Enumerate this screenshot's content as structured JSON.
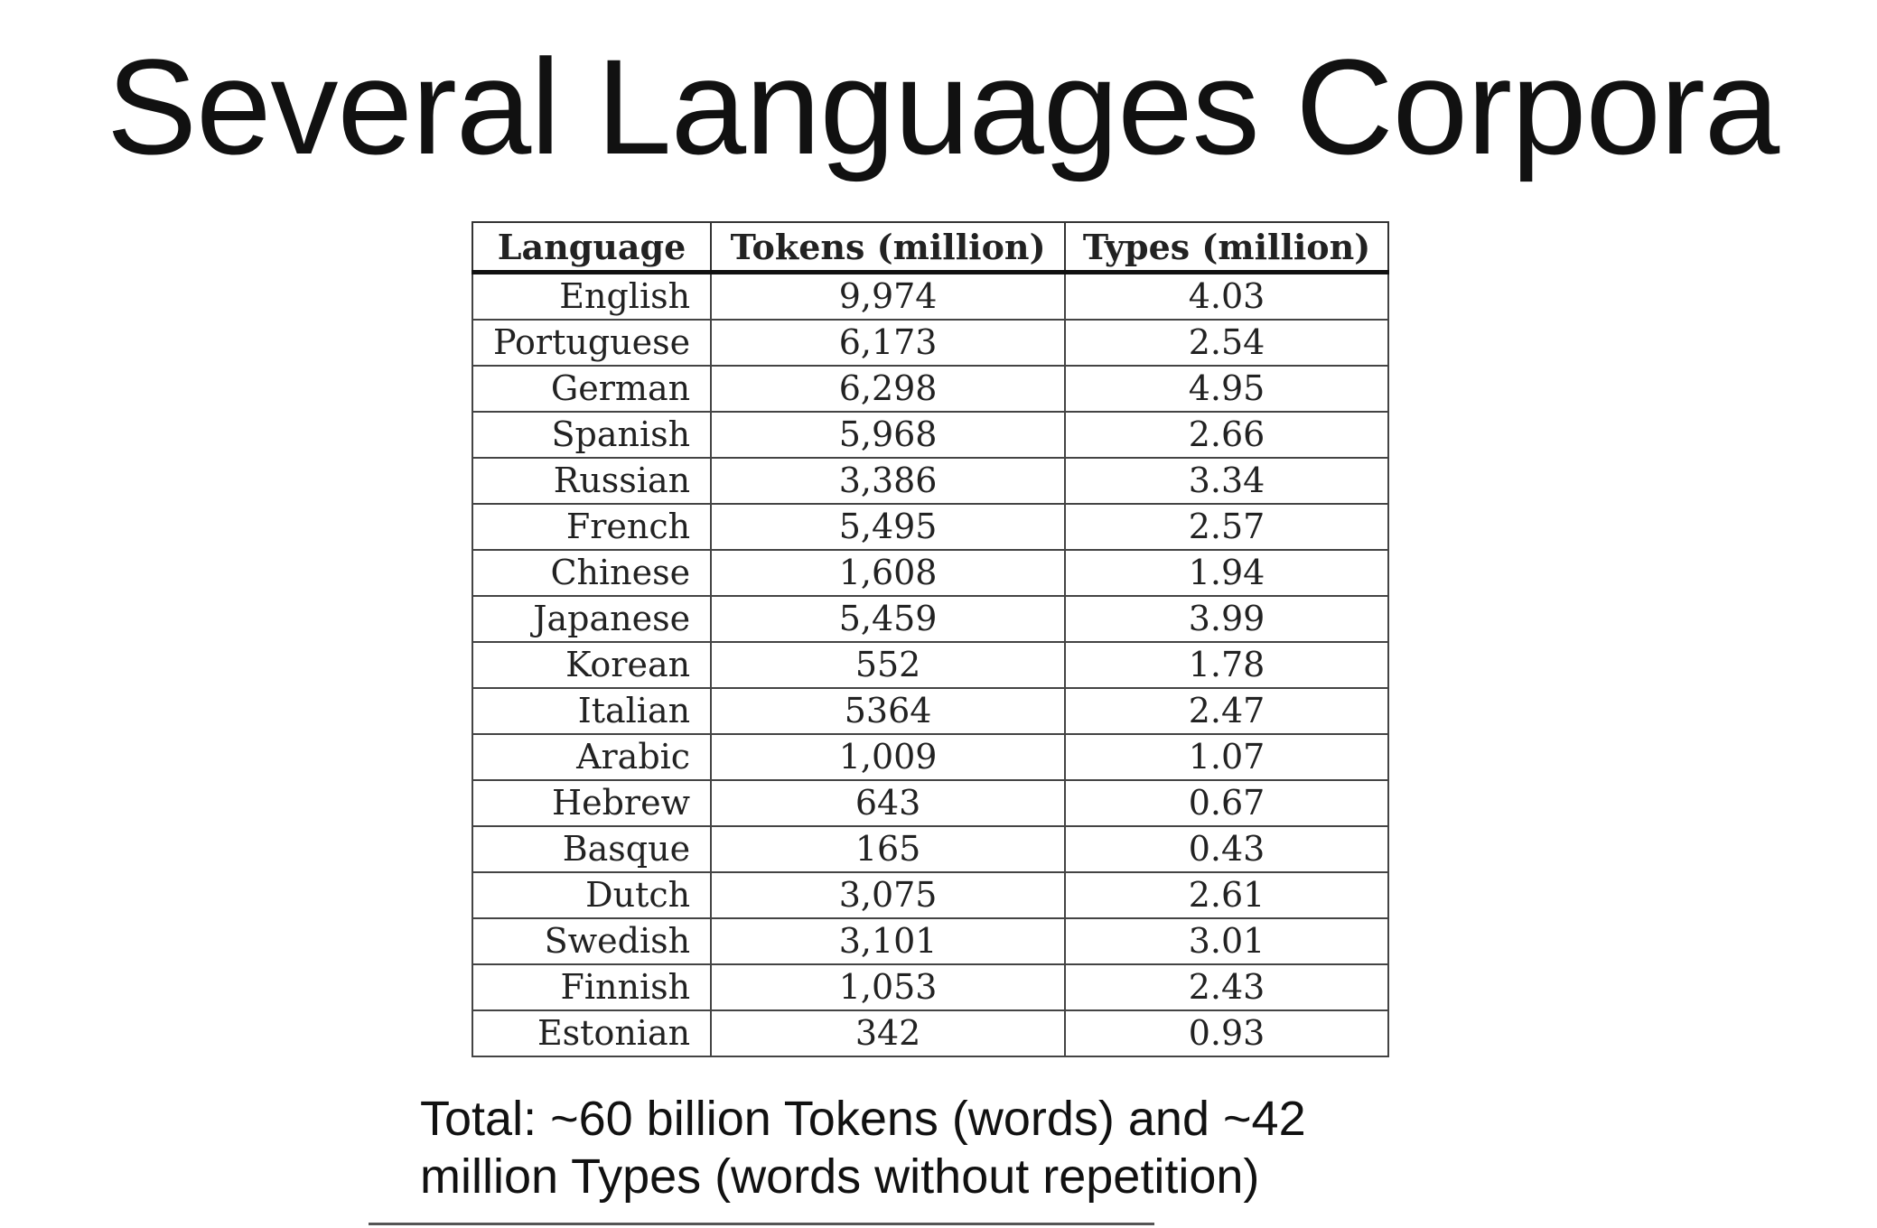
{
  "slide": {
    "title": "Several Languages Corpora"
  },
  "table": {
    "headers": {
      "language": "Language",
      "tokens": "Tokens (million)",
      "types": "Types (million)"
    },
    "rows": [
      {
        "language": "English",
        "tokens": "9,974",
        "types": "4.03"
      },
      {
        "language": "Portuguese",
        "tokens": "6,173",
        "types": "2.54"
      },
      {
        "language": "German",
        "tokens": "6,298",
        "types": "4.95"
      },
      {
        "language": "Spanish",
        "tokens": "5,968",
        "types": "2.66"
      },
      {
        "language": "Russian",
        "tokens": "3,386",
        "types": "3.34"
      },
      {
        "language": "French",
        "tokens": "5,495",
        "types": "2.57"
      },
      {
        "language": "Chinese",
        "tokens": "1,608",
        "types": "1.94"
      },
      {
        "language": "Japanese",
        "tokens": "5,459",
        "types": "3.99"
      },
      {
        "language": "Korean",
        "tokens": "552",
        "types": "1.78"
      },
      {
        "language": "Italian",
        "tokens": "5364",
        "types": "2.47"
      },
      {
        "language": "Arabic",
        "tokens": "1,009",
        "types": "1.07"
      },
      {
        "language": "Hebrew",
        "tokens": "643",
        "types": "0.67"
      },
      {
        "language": "Basque",
        "tokens": "165",
        "types": "0.43"
      },
      {
        "language": "Dutch",
        "tokens": "3,075",
        "types": "2.61"
      },
      {
        "language": "Swedish",
        "tokens": "3,101",
        "types": "3.01"
      },
      {
        "language": "Finnish",
        "tokens": "1,053",
        "types": "2.43"
      },
      {
        "language": "Estonian",
        "tokens": "342",
        "types": "0.93"
      }
    ]
  },
  "footer": {
    "total_line1": "Total: ~60 billion Tokens (words) and ~42",
    "total_line2": "million Types (words without repetition)"
  }
}
